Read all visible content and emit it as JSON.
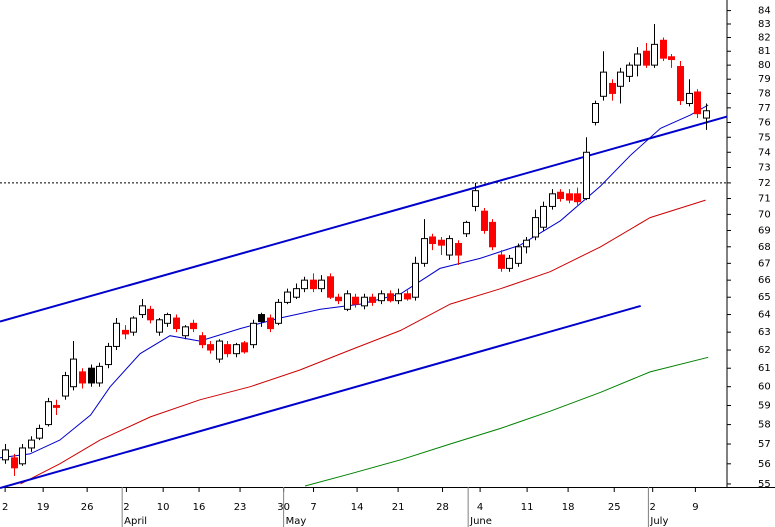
{
  "chart_data": {
    "type": "candlestick",
    "open": [
      56.2,
      56.3,
      56.0,
      56.8,
      57.3,
      58.0,
      59.0,
      59.5,
      60.0,
      60.8,
      61.0,
      60.2,
      61.2,
      62.2,
      63.1,
      63.0,
      64.0,
      64.3,
      63.0,
      63.5,
      63.8,
      62.8,
      63.5,
      62.8,
      62.3,
      61.5,
      62.3,
      61.8,
      62.4,
      62.3,
      64.0,
      63.8,
      63.5,
      64.7,
      65.0,
      65.5,
      66.0,
      65.5,
      66.2,
      65.0,
      64.3,
      65.0,
      64.5,
      65.0,
      64.8,
      65.2,
      64.8,
      65.2,
      65.0,
      67.0,
      68.6,
      68.4,
      67.5,
      68.2,
      68.8,
      70.5,
      70.2,
      69.5,
      67.5,
      66.7,
      67.0,
      68.0,
      68.6,
      69.2,
      70.5,
      71.4,
      71.3,
      71.3,
      71.0,
      76.0,
      77.8,
      78.7,
      78.5,
      79.2,
      80.0,
      81.0,
      80.0,
      81.8,
      80.6,
      79.9,
      77.3,
      78.1,
      76.3
    ],
    "high": [
      57.0,
      56.5,
      57.0,
      57.4,
      58.0,
      59.4,
      59.3,
      60.8,
      62.5,
      61.0,
      61.2,
      61.3,
      62.4,
      63.8,
      63.4,
      63.9,
      64.9,
      64.5,
      63.8,
      64.1,
      64.0,
      63.4,
      63.7,
      63.0,
      62.5,
      62.6,
      62.5,
      62.4,
      62.5,
      63.7,
      64.1,
      64.0,
      64.9,
      65.5,
      65.8,
      66.2,
      66.4,
      66.3,
      66.4,
      65.2,
      65.4,
      65.2,
      65.2,
      65.2,
      65.4,
      65.4,
      65.5,
      65.4,
      67.4,
      69.7,
      68.8,
      68.6,
      68.7,
      68.4,
      69.6,
      72.0,
      70.4,
      69.7,
      67.8,
      67.5,
      68.2,
      68.6,
      70.3,
      70.8,
      71.6,
      71.6,
      71.6,
      71.7,
      75.0,
      77.5,
      81.0,
      79.0,
      79.8,
      80.2,
      81.3,
      81.6,
      83.0,
      82.0,
      80.8,
      80.3,
      79.0,
      78.3,
      77.3
    ],
    "low": [
      56.0,
      55.4,
      55.9,
      56.6,
      57.2,
      57.9,
      58.5,
      59.3,
      59.8,
      59.9,
      60.0,
      60.0,
      61.0,
      62.0,
      62.6,
      62.8,
      63.8,
      63.5,
      62.8,
      63.3,
      63.0,
      62.6,
      63.0,
      62.1,
      61.8,
      61.3,
      61.6,
      61.6,
      61.8,
      62.1,
      63.3,
      63.0,
      63.4,
      64.6,
      64.9,
      65.3,
      65.3,
      65.3,
      64.9,
      64.6,
      64.2,
      64.4,
      64.3,
      64.5,
      64.6,
      64.7,
      64.6,
      64.8,
      64.8,
      66.8,
      67.8,
      67.5,
      67.2,
      66.9,
      68.6,
      70.2,
      68.8,
      67.8,
      66.5,
      66.5,
      66.8,
      67.6,
      68.4,
      69.0,
      70.3,
      70.8,
      70.7,
      70.6,
      70.9,
      75.8,
      77.5,
      77.5,
      77.3,
      78.8,
      79.2,
      79.8,
      79.8,
      80.3,
      79.8,
      77.2,
      77.1,
      76.3,
      75.5
    ],
    "close": [
      56.7,
      55.8,
      56.8,
      57.2,
      57.8,
      59.2,
      58.9,
      60.6,
      61.5,
      60.2,
      60.2,
      61.1,
      62.2,
      63.5,
      62.9,
      63.8,
      64.5,
      63.7,
      63.7,
      64.0,
      63.2,
      63.3,
      63.2,
      62.3,
      62.0,
      62.5,
      61.8,
      62.3,
      61.9,
      63.5,
      63.6,
      63.2,
      64.7,
      65.3,
      65.5,
      66.0,
      65.5,
      66.0,
      65.0,
      64.8,
      65.2,
      64.6,
      65.0,
      64.7,
      65.2,
      64.8,
      65.2,
      64.9,
      67.0,
      68.5,
      68.2,
      68.1,
      68.5,
      67.5,
      69.5,
      71.5,
      69.0,
      68.0,
      66.7,
      67.3,
      68.0,
      68.4,
      69.8,
      70.5,
      71.3,
      71.0,
      70.9,
      70.8,
      74.0,
      77.3,
      79.5,
      78.0,
      79.5,
      80.0,
      80.8,
      80.0,
      81.5,
      80.5,
      80.4,
      77.5,
      78.0,
      76.6,
      76.8
    ],
    "up_color": "#000000",
    "down_color": "#ff0000",
    "hollow_fill": "#ffffff",
    "averages": [
      {
        "color": "#0000cc",
        "x": [
          -0.6,
          2.9,
          6.4,
          10,
          12.3,
          15.8,
          19.3,
          22.8,
          27.5,
          32.2,
          36.9,
          41.6,
          46.3,
          50.9,
          55.6,
          60.3,
          65,
          69.7,
          73.2,
          76.7,
          80.2,
          82.3
        ],
        "values": [
          56.3,
          56.5,
          57.2,
          58.5,
          60,
          61.8,
          62.8,
          62.5,
          63.2,
          63.8,
          64.3,
          64.6,
          65.2,
          66.7,
          67.3,
          68.1,
          69.6,
          71.8,
          73.8,
          75.6,
          76.5,
          77.2
        ]
      },
      {
        "color": "#cc0000",
        "x": [
          1.8,
          6.4,
          11.1,
          17,
          22.8,
          28.7,
          34.5,
          40.4,
          46.3,
          52.1,
          58,
          63.8,
          69.7,
          75.5,
          82
        ],
        "values": [
          55,
          56,
          57.2,
          58.4,
          59.3,
          60,
          60.9,
          62,
          63.1,
          64.6,
          65.5,
          66.5,
          68,
          69.8,
          70.9
        ]
      },
      {
        "color": "#008000",
        "x": [
          35.1,
          40.4,
          46.3,
          52.1,
          58,
          63.8,
          69.7,
          75.5,
          82.3
        ],
        "values": [
          54.9,
          55.5,
          56.2,
          57,
          57.8,
          58.7,
          59.7,
          60.8,
          61.6
        ]
      }
    ],
    "trend_lines": [
      {
        "color": "#0000cc",
        "x": [
          -0.6,
          84.5
        ],
        "values": [
          63.6,
          76.4
        ]
      },
      {
        "color": "#0000cc",
        "x": [
          -0.6,
          74.4
        ],
        "values": [
          54.8,
          64.5
        ]
      }
    ],
    "reference_lines": [
      {
        "value": 72,
        "color": "#000000"
      }
    ],
    "xlim": [
      -0.6,
      84.5
    ],
    "xticks": [
      {
        "value": 0,
        "label": "2"
      },
      {
        "value": 4.45,
        "label": "19"
      },
      {
        "value": 9.6,
        "label": "26"
      },
      {
        "value": 14.2,
        "label": "2"
      },
      {
        "value": 18.5,
        "label": "10"
      },
      {
        "value": 22.7,
        "label": "16"
      },
      {
        "value": 27.5,
        "label": "23"
      },
      {
        "value": 32.6,
        "label": "30"
      },
      {
        "value": 36.1,
        "label": "7"
      },
      {
        "value": 41.2,
        "label": "14"
      },
      {
        "value": 46,
        "label": "21"
      },
      {
        "value": 51.2,
        "label": "28"
      },
      {
        "value": 55.6,
        "label": "4"
      },
      {
        "value": 61.1,
        "label": "11"
      },
      {
        "value": 65.9,
        "label": "18"
      },
      {
        "value": 71.3,
        "label": "25"
      },
      {
        "value": 75.8,
        "label": "2"
      },
      {
        "value": 80.8,
        "label": "9"
      }
    ],
    "months": [
      {
        "value": 13.7,
        "label": "April"
      },
      {
        "value": 32.6,
        "label": "May"
      },
      {
        "value": 54.2,
        "label": "June"
      },
      {
        "value": 75.3,
        "label": "July"
      }
    ],
    "ylim": [
      54.85,
      84.8
    ],
    "yticks": [
      55,
      56,
      57,
      58,
      59,
      60,
      61,
      62,
      63,
      64,
      65,
      66,
      67,
      68,
      69,
      70,
      71,
      72,
      73,
      74,
      75,
      76,
      77,
      78,
      79,
      80,
      81,
      82,
      83,
      84
    ],
    "log_scale": true
  }
}
